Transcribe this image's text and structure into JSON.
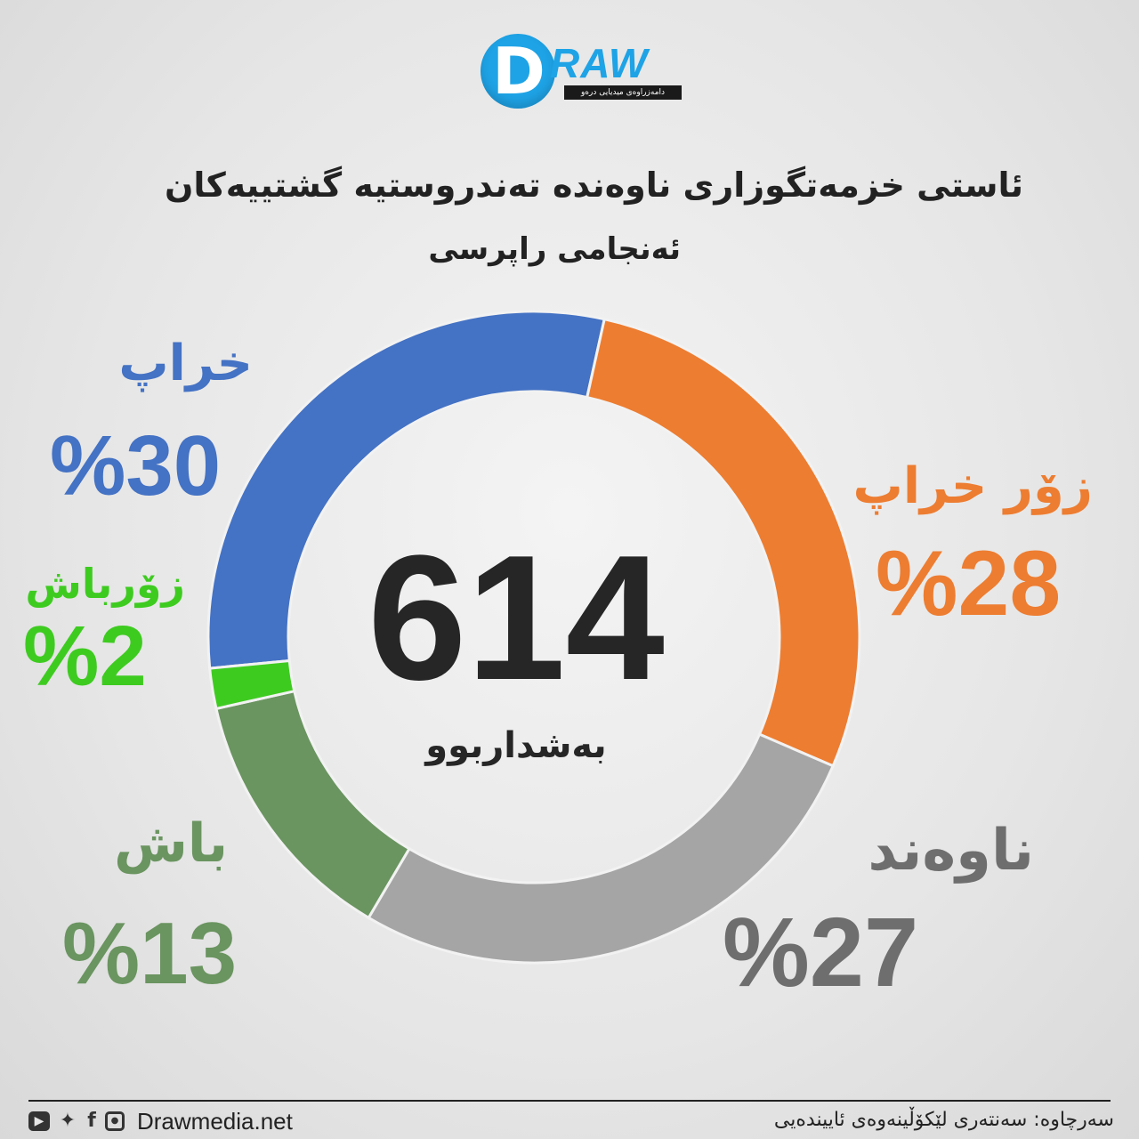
{
  "logo": {
    "letter": "D",
    "word": "RAW",
    "tagline": "دامەزراوەی میدیایی درەو"
  },
  "header": {
    "title": "ئاستی خزمەتگوزاری ناوەندە تەندروستیە گشتییەکان",
    "subtitle": "ئەنجامی راپرسی"
  },
  "chart_data": {
    "type": "pie",
    "donut": true,
    "total": "614",
    "total_label": "بەشداربوو",
    "segments": [
      {
        "label": "خراپ",
        "value": 30,
        "value_text": "%30",
        "color": "#4472c4"
      },
      {
        "label": "زۆر خراپ",
        "value": 28,
        "value_text": "%28",
        "color": "#ed7d31"
      },
      {
        "label": "ناوەند",
        "value": 27,
        "value_text": "%27",
        "color": "#a5a5a5"
      },
      {
        "label": "باش",
        "value": 13,
        "value_text": "%13",
        "color": "#6a9460"
      },
      {
        "label": "زۆرباش",
        "value": 2,
        "value_text": "%2",
        "color": "#3ecb20"
      }
    ]
  },
  "footer": {
    "social_icons": [
      "youtube-icon",
      "twitter-icon",
      "facebook-icon",
      "instagram-icon"
    ],
    "site": "Drawmedia.net",
    "source": "سەرچاوە: سەنتەری لێکۆڵینەوەی ئاییندەیی"
  }
}
